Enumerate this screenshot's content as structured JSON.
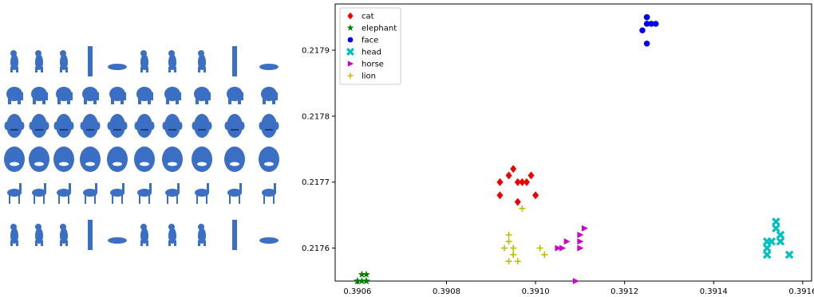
{
  "gallery": {
    "rows": [
      {
        "category": "cat",
        "count": 10
      },
      {
        "category": "elephant",
        "count": 10
      },
      {
        "category": "head",
        "count": 10
      },
      {
        "category": "face",
        "count": 10
      },
      {
        "category": "horse",
        "count": 10
      },
      {
        "category": "lion",
        "count": 10
      }
    ],
    "shape_color": "#3a6fc4"
  },
  "chart_data": {
    "type": "scatter",
    "title": "",
    "xlabel": "",
    "ylabel": "",
    "xlim": [
      0.39055,
      0.39162
    ],
    "ylim": [
      0.21755,
      0.21797
    ],
    "xticks": [
      0.3906,
      0.3908,
      0.391,
      0.3912,
      0.3914,
      0.3916
    ],
    "xtick_labels": [
      "0.3906",
      "0.3908",
      "0.3910",
      "0.3912",
      "0.3914",
      "0.3916"
    ],
    "yticks": [
      0.2176,
      0.2177,
      0.2178,
      0.2179
    ],
    "ytick_labels": [
      "0.2176",
      "0.2177",
      "0.2178",
      "0.2179"
    ],
    "grid": false,
    "legend_position": "top-left",
    "series": [
      {
        "name": "cat",
        "color": "#ee0000",
        "marker": "diamond",
        "points": [
          [
            0.39092,
            0.2177
          ],
          [
            0.39094,
            0.21771
          ],
          [
            0.39095,
            0.21772
          ],
          [
            0.39096,
            0.2177
          ],
          [
            0.39097,
            0.2177
          ],
          [
            0.39098,
            0.2177
          ],
          [
            0.39099,
            0.21771
          ],
          [
            0.391,
            0.21768
          ],
          [
            0.39092,
            0.21768
          ],
          [
            0.39096,
            0.21767
          ]
        ]
      },
      {
        "name": "elephant",
        "color": "#008000",
        "marker": "star",
        "points": [
          [
            0.3906,
            0.21755
          ],
          [
            0.39061,
            0.21756
          ],
          [
            0.39062,
            0.21755
          ],
          [
            0.39061,
            0.21755
          ],
          [
            0.39062,
            0.21756
          ],
          [
            0.3906,
            0.21755
          ],
          [
            0.39062,
            0.21755
          ]
        ]
      },
      {
        "name": "face",
        "color": "#0000ee",
        "marker": "circle",
        "points": [
          [
            0.39125,
            0.21795
          ],
          [
            0.39125,
            0.21795
          ],
          [
            0.39124,
            0.21793
          ],
          [
            0.39125,
            0.21794
          ],
          [
            0.39126,
            0.21794
          ],
          [
            0.39127,
            0.21794
          ],
          [
            0.39125,
            0.21791
          ]
        ]
      },
      {
        "name": "head",
        "color": "#00bfbf",
        "marker": "x",
        "points": [
          [
            0.39154,
            0.21764
          ],
          [
            0.39154,
            0.21763
          ],
          [
            0.39155,
            0.21762
          ],
          [
            0.39153,
            0.21761
          ],
          [
            0.39155,
            0.21761
          ],
          [
            0.39152,
            0.21761
          ],
          [
            0.39152,
            0.2176
          ],
          [
            0.39157,
            0.21759
          ],
          [
            0.39152,
            0.21759
          ]
        ]
      },
      {
        "name": "horse",
        "color": "#cc00cc",
        "marker": "triangle-right",
        "points": [
          [
            0.39111,
            0.21763
          ],
          [
            0.3911,
            0.21762
          ],
          [
            0.39107,
            0.21761
          ],
          [
            0.3911,
            0.21761
          ],
          [
            0.39105,
            0.2176
          ],
          [
            0.39106,
            0.2176
          ],
          [
            0.3911,
            0.2176
          ],
          [
            0.39109,
            0.21755
          ]
        ]
      },
      {
        "name": "lion",
        "color": "#bfbf00",
        "marker": "plus",
        "points": [
          [
            0.39097,
            0.21766
          ],
          [
            0.39094,
            0.21762
          ],
          [
            0.39094,
            0.21761
          ],
          [
            0.39093,
            0.2176
          ],
          [
            0.39095,
            0.2176
          ],
          [
            0.39101,
            0.2176
          ],
          [
            0.39102,
            0.21759
          ],
          [
            0.39095,
            0.21759
          ],
          [
            0.39094,
            0.21758
          ],
          [
            0.39096,
            0.21758
          ]
        ]
      }
    ]
  }
}
